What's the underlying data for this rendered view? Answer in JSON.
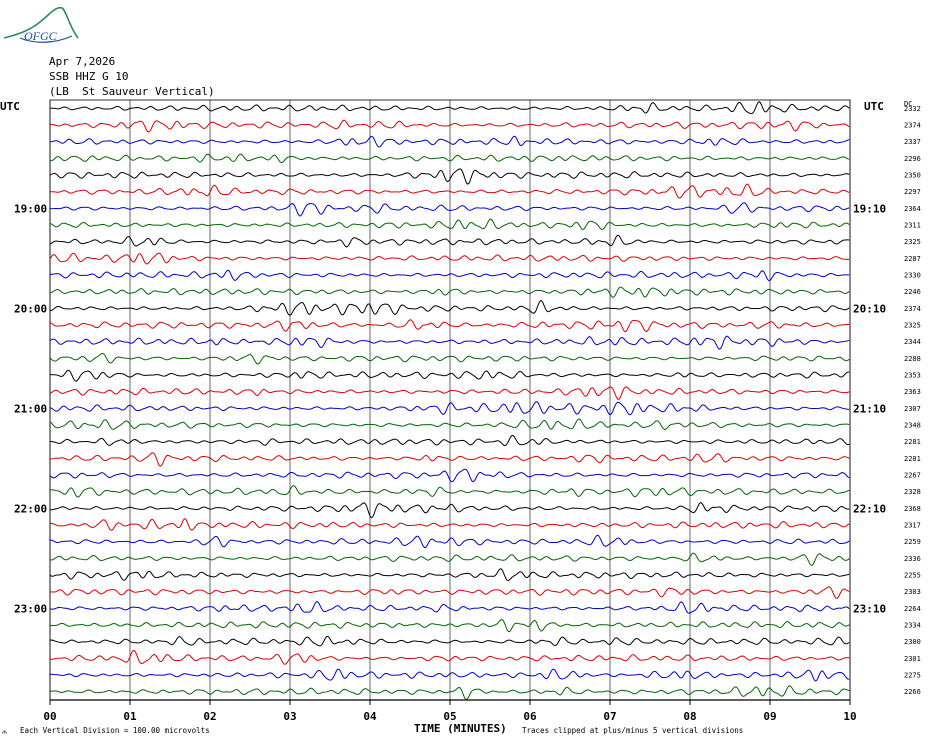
{
  "logo": {
    "text": "OFGC"
  },
  "header": {
    "date": "Apr 7,2026",
    "station": "SSB HHZ G 10",
    "location": "(LB  St Sauveur Vertical)"
  },
  "labels": {
    "utc_left": "UTC",
    "utc_right": "UTC",
    "dc": "DC",
    "xaxis": "TIME (MINUTES)",
    "footer_left": "Each Vertical Division =  100.00 microvolts",
    "footer_right": "Traces clipped at plus/minus 5 vertical divisions",
    "corner_mark": "ሕ"
  },
  "colors": {
    "trace_cycle": [
      "#000000",
      "#dd0000",
      "#0000cc",
      "#006600"
    ],
    "grid": "#000000"
  },
  "chart_data": {
    "type": "line",
    "subtype": "helicorder",
    "x": [
      0,
      1,
      2,
      3,
      4,
      5,
      6,
      7,
      8,
      9,
      10
    ],
    "xtick_labels": [
      "00",
      "01",
      "02",
      "03",
      "04",
      "05",
      "06",
      "07",
      "08",
      "09",
      "10"
    ],
    "xlabel": "TIME (MINUTES)",
    "xlim": [
      0,
      10
    ],
    "rows": 36,
    "left_time_labels": [
      {
        "row": 6,
        "text": "19:00"
      },
      {
        "row": 12,
        "text": "20:00"
      },
      {
        "row": 18,
        "text": "21:00"
      },
      {
        "row": 24,
        "text": "22:00"
      },
      {
        "row": 30,
        "text": "23:00"
      }
    ],
    "right_time_labels": [
      {
        "row": 6,
        "text": "19:10"
      },
      {
        "row": 12,
        "text": "20:10"
      },
      {
        "row": 18,
        "text": "21:10"
      },
      {
        "row": 24,
        "text": "22:10"
      },
      {
        "row": 30,
        "text": "23:10"
      }
    ],
    "dc_values": [
      "2332",
      "2374",
      "2337",
      "2296",
      "2350",
      "2297",
      "2364",
      "2311",
      "2325",
      "2287",
      "2330",
      "2246",
      "2374",
      "2325",
      "2344",
      "2288",
      "2353",
      "2363",
      "2307",
      "2348",
      "2281",
      "2281",
      "2267",
      "2328",
      "2368",
      "2317",
      "2259",
      "2336",
      "2255",
      "2303",
      "2264",
      "2334",
      "2300",
      "2301",
      "2275",
      "2266"
    ]
  }
}
